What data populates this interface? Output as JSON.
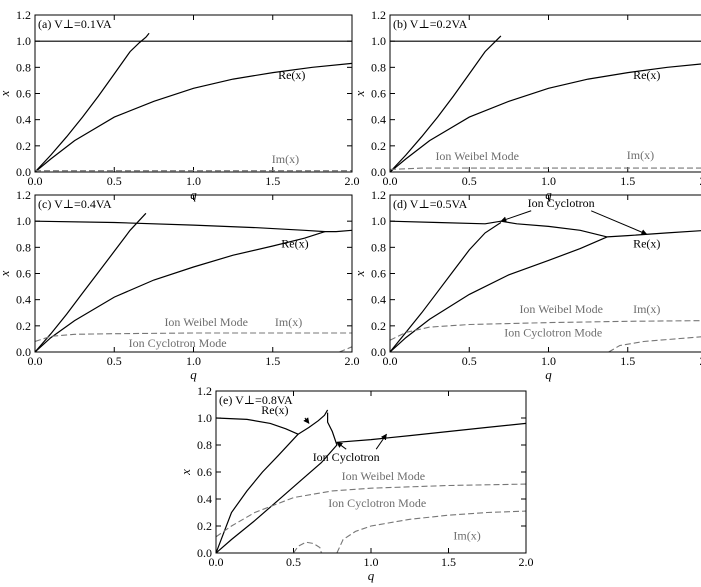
{
  "chart_data": [
    {
      "type": "line",
      "panel_label": "(a) V⊥=0.1VA",
      "xlabel": "q",
      "ylabel": "x",
      "xlim": [
        0,
        2.0
      ],
      "ylim": [
        0,
        1.2
      ],
      "xticks": [
        "0.0",
        "0.5",
        "1.0",
        "1.5",
        "2.0"
      ],
      "yticks": [
        "0.0",
        "0.2",
        "0.4",
        "0.6",
        "0.8",
        "1.0",
        "1.2"
      ],
      "series": [
        {
          "style": "solid",
          "color": "#000000",
          "points": [
            [
              0,
              1.0
            ],
            [
              2.0,
              1.0
            ]
          ]
        },
        {
          "style": "solid",
          "color": "#000000",
          "points": [
            [
              0,
              0
            ],
            [
              0.1,
              0.13
            ],
            [
              0.2,
              0.27
            ],
            [
              0.3,
              0.42
            ],
            [
              0.4,
              0.58
            ],
            [
              0.5,
              0.75
            ],
            [
              0.6,
              0.92
            ],
            [
              0.66,
              0.99
            ],
            [
              0.7,
              1.03
            ],
            [
              0.72,
              1.06
            ]
          ]
        },
        {
          "style": "solid",
          "color": "#000000",
          "points": [
            [
              0,
              0
            ],
            [
              0.1,
              0.1
            ],
            [
              0.25,
              0.24
            ],
            [
              0.5,
              0.42
            ],
            [
              0.75,
              0.54
            ],
            [
              1.0,
              0.64
            ],
            [
              1.25,
              0.71
            ],
            [
              1.5,
              0.76
            ],
            [
              1.75,
              0.8
            ],
            [
              2.0,
              0.83
            ]
          ]
        },
        {
          "style": "dashed",
          "color": "#777777",
          "points": [
            [
              0,
              0.01
            ],
            [
              2.0,
              0.01
            ]
          ]
        }
      ],
      "annotations": [
        {
          "text": "Re(x)",
          "x": 1.62,
          "y": 0.71,
          "color": "#000000"
        },
        {
          "text": "Im(x)",
          "x": 1.58,
          "y": 0.07,
          "color": "#6e6e6e"
        }
      ]
    },
    {
      "type": "line",
      "panel_label": "(b) V⊥=0.2VA",
      "xlabel": "q",
      "ylabel": "x",
      "xlim": [
        0,
        2.0
      ],
      "ylim": [
        0,
        1.2
      ],
      "xticks": [
        "0.0",
        "0.5",
        "1.0",
        "1.5",
        "2.0"
      ],
      "yticks": [
        "0.0",
        "0.2",
        "0.4",
        "0.6",
        "0.8",
        "1.0",
        "1.2"
      ],
      "series": [
        {
          "style": "solid",
          "color": "#000000",
          "points": [
            [
              0,
              1.0
            ],
            [
              2.0,
              1.0
            ]
          ]
        },
        {
          "style": "solid",
          "color": "#000000",
          "points": [
            [
              0,
              0
            ],
            [
              0.1,
              0.13
            ],
            [
              0.2,
              0.27
            ],
            [
              0.3,
              0.42
            ],
            [
              0.4,
              0.58
            ],
            [
              0.5,
              0.75
            ],
            [
              0.6,
              0.92
            ],
            [
              0.7,
              1.04
            ]
          ]
        },
        {
          "style": "solid",
          "color": "#000000",
          "points": [
            [
              0,
              0
            ],
            [
              0.1,
              0.1
            ],
            [
              0.25,
              0.24
            ],
            [
              0.5,
              0.42
            ],
            [
              0.75,
              0.54
            ],
            [
              1.0,
              0.64
            ],
            [
              1.25,
              0.71
            ],
            [
              1.5,
              0.76
            ],
            [
              1.75,
              0.8
            ],
            [
              2.0,
              0.83
            ]
          ]
        },
        {
          "style": "dashed",
          "color": "#777777",
          "points": [
            [
              0,
              0.02
            ],
            [
              0.2,
              0.03
            ],
            [
              2.0,
              0.03
            ]
          ]
        }
      ],
      "annotations": [
        {
          "text": "Re(x)",
          "x": 1.62,
          "y": 0.71,
          "color": "#000000"
        },
        {
          "text": "Ion Weibel Mode",
          "x": 0.55,
          "y": 0.09,
          "color": "#6e6e6e"
        },
        {
          "text": "Im(x)",
          "x": 1.58,
          "y": 0.1,
          "color": "#6e6e6e"
        }
      ]
    },
    {
      "type": "line",
      "panel_label": "(c) V⊥=0.4VA",
      "xlabel": "q",
      "ylabel": "x",
      "xlim": [
        0,
        2.0
      ],
      "ylim": [
        0,
        1.2
      ],
      "xticks": [
        "0.0",
        "0.5",
        "1.0",
        "1.5",
        "2.0"
      ],
      "yticks": [
        "0.0",
        "0.2",
        "0.4",
        "0.6",
        "0.8",
        "1.0",
        "1.2"
      ],
      "series": [
        {
          "style": "solid",
          "color": "#000000",
          "points": [
            [
              0,
              1.0
            ],
            [
              0.5,
              0.99
            ],
            [
              1.0,
              0.97
            ],
            [
              1.4,
              0.95
            ],
            [
              1.7,
              0.93
            ],
            [
              1.83,
              0.92
            ],
            [
              1.9,
              0.92
            ],
            [
              2.0,
              0.93
            ]
          ]
        },
        {
          "style": "solid",
          "color": "#000000",
          "points": [
            [
              0,
              0
            ],
            [
              0.1,
              0.14
            ],
            [
              0.2,
              0.29
            ],
            [
              0.3,
              0.45
            ],
            [
              0.4,
              0.61
            ],
            [
              0.5,
              0.77
            ],
            [
              0.6,
              0.93
            ],
            [
              0.7,
              1.06
            ]
          ]
        },
        {
          "style": "solid",
          "color": "#000000",
          "points": [
            [
              0,
              0
            ],
            [
              0.1,
              0.11
            ],
            [
              0.25,
              0.24
            ],
            [
              0.5,
              0.42
            ],
            [
              0.75,
              0.55
            ],
            [
              1.0,
              0.65
            ],
            [
              1.25,
              0.74
            ],
            [
              1.5,
              0.81
            ],
            [
              1.7,
              0.87
            ],
            [
              1.83,
              0.92
            ]
          ]
        },
        {
          "style": "dashed",
          "color": "#777777",
          "points": [
            [
              0,
              0.08
            ],
            [
              0.1,
              0.12
            ],
            [
              0.25,
              0.135
            ],
            [
              0.5,
              0.14
            ],
            [
              1.0,
              0.145
            ],
            [
              1.5,
              0.145
            ],
            [
              2.0,
              0.145
            ]
          ]
        },
        {
          "style": "dashed",
          "color": "#777777",
          "points": [
            [
              1.92,
              0.0
            ],
            [
              1.96,
              0.02
            ],
            [
              2.0,
              0.04
            ]
          ]
        }
      ],
      "annotations": [
        {
          "text": "Re(x)",
          "x": 1.64,
          "y": 0.8,
          "color": "#000000"
        },
        {
          "text": "Ion Weibel Mode",
          "x": 1.08,
          "y": 0.2,
          "color": "#6e6e6e"
        },
        {
          "text": "Im(x)",
          "x": 1.6,
          "y": 0.2,
          "color": "#6e6e6e"
        },
        {
          "text": "Ion Cyclotron Mode",
          "x": 0.9,
          "y": 0.04,
          "color": "#6e6e6e"
        }
      ]
    },
    {
      "type": "line",
      "panel_label": "(d) V⊥=0.5VA",
      "xlabel": "q",
      "ylabel": "x",
      "xlim": [
        0,
        2.0
      ],
      "ylim": [
        0,
        1.2
      ],
      "xticks": [
        "0.0",
        "0.5",
        "1.0",
        "1.5",
        "2.0"
      ],
      "yticks": [
        "0.0",
        "0.2",
        "0.4",
        "0.6",
        "0.8",
        "1.0",
        "1.2"
      ],
      "series": [
        {
          "style": "solid",
          "color": "#000000",
          "points": [
            [
              0,
              1.0
            ],
            [
              0.3,
              0.99
            ],
            [
              0.6,
              0.98
            ],
            [
              0.7,
              1.0
            ],
            [
              0.8,
              0.98
            ],
            [
              1.0,
              0.96
            ],
            [
              1.2,
              0.93
            ],
            [
              1.37,
              0.88
            ],
            [
              1.5,
              0.89
            ],
            [
              1.75,
              0.91
            ],
            [
              2.0,
              0.93
            ]
          ]
        },
        {
          "style": "solid",
          "color": "#000000",
          "points": [
            [
              0,
              0
            ],
            [
              0.1,
              0.15
            ],
            [
              0.2,
              0.3
            ],
            [
              0.3,
              0.46
            ],
            [
              0.4,
              0.62
            ],
            [
              0.5,
              0.78
            ],
            [
              0.6,
              0.91
            ],
            [
              0.7,
              0.99
            ]
          ]
        },
        {
          "style": "solid",
          "color": "#000000",
          "points": [
            [
              0,
              0
            ],
            [
              0.1,
              0.11
            ],
            [
              0.25,
              0.25
            ],
            [
              0.5,
              0.44
            ],
            [
              0.75,
              0.59
            ],
            [
              1.0,
              0.7
            ],
            [
              1.2,
              0.79
            ],
            [
              1.37,
              0.88
            ]
          ]
        },
        {
          "style": "dashed",
          "color": "#777777",
          "points": [
            [
              0,
              0.09
            ],
            [
              0.1,
              0.15
            ],
            [
              0.25,
              0.19
            ],
            [
              0.5,
              0.21
            ],
            [
              1.0,
              0.225
            ],
            [
              1.5,
              0.235
            ],
            [
              2.0,
              0.24
            ]
          ]
        },
        {
          "style": "dashed",
          "color": "#777777",
          "points": [
            [
              1.38,
              0.0
            ],
            [
              1.45,
              0.05
            ],
            [
              1.6,
              0.08
            ],
            [
              1.8,
              0.1
            ],
            [
              2.0,
              0.12
            ]
          ]
        }
      ],
      "annotations": [
        {
          "text": "Ion Cyclotron",
          "x": 1.08,
          "y": 1.11,
          "color": "#000000"
        },
        {
          "text": "Re(x)",
          "x": 1.62,
          "y": 0.8,
          "color": "#000000"
        },
        {
          "text": "Ion Weibel Mode",
          "x": 1.08,
          "y": 0.3,
          "color": "#6e6e6e"
        },
        {
          "text": "Im(x)",
          "x": 1.62,
          "y": 0.3,
          "color": "#6e6e6e"
        },
        {
          "text": "Ion Cyclotron Mode",
          "x": 1.03,
          "y": 0.12,
          "color": "#6e6e6e"
        }
      ]
    },
    {
      "type": "line",
      "panel_label": "(e) V⊥=0.8VA",
      "xlabel": "q",
      "ylabel": "x",
      "xlim": [
        0,
        2.0
      ],
      "ylim": [
        0,
        1.2
      ],
      "xticks": [
        "0.0",
        "0.5",
        "1.0",
        "1.5",
        "2.0"
      ],
      "yticks": [
        "0.0",
        "0.2",
        "0.4",
        "0.6",
        "0.8",
        "1.0",
        "1.2"
      ],
      "series": [
        {
          "style": "solid",
          "color": "#000000",
          "points": [
            [
              0,
              1.0
            ],
            [
              0.2,
              0.99
            ],
            [
              0.35,
              0.96
            ],
            [
              0.45,
              0.92
            ],
            [
              0.53,
              0.88
            ],
            [
              0.6,
              0.93
            ],
            [
              0.66,
              0.98
            ],
            [
              0.7,
              1.02
            ],
            [
              0.72,
              1.06
            ]
          ]
        },
        {
          "style": "solid",
          "color": "#000000",
          "points": [
            [
              0,
              0
            ],
            [
              0.1,
              0.3
            ],
            [
              0.2,
              0.46
            ],
            [
              0.3,
              0.6
            ],
            [
              0.4,
              0.72
            ],
            [
              0.53,
              0.88
            ]
          ]
        },
        {
          "style": "solid",
          "color": "#000000",
          "points": [
            [
              0,
              0
            ],
            [
              0.1,
              0.1
            ],
            [
              0.25,
              0.24
            ],
            [
              0.4,
              0.39
            ],
            [
              0.55,
              0.54
            ],
            [
              0.68,
              0.67
            ],
            [
              0.78,
              0.8
            ],
            [
              0.75,
              0.9
            ],
            [
              0.72,
              0.97
            ],
            [
              0.72,
              1.04
            ]
          ]
        },
        {
          "style": "solid",
          "color": "#000000",
          "points": [
            [
              0.78,
              0.82
            ],
            [
              1.0,
              0.84
            ],
            [
              1.25,
              0.87
            ],
            [
              1.5,
              0.9
            ],
            [
              1.75,
              0.93
            ],
            [
              2.0,
              0.96
            ]
          ]
        },
        {
          "style": "dashed",
          "color": "#777777",
          "points": [
            [
              0,
              0.12
            ],
            [
              0.1,
              0.2
            ],
            [
              0.25,
              0.3
            ],
            [
              0.5,
              0.41
            ],
            [
              0.75,
              0.46
            ],
            [
              1.0,
              0.48
            ],
            [
              1.5,
              0.5
            ],
            [
              2.0,
              0.51
            ]
          ]
        },
        {
          "style": "dashed",
          "color": "#777777",
          "points": [
            [
              0.5,
              0.0
            ],
            [
              0.53,
              0.05
            ],
            [
              0.58,
              0.08
            ],
            [
              0.63,
              0.07
            ],
            [
              0.67,
              0.04
            ],
            [
              0.68,
              0.0
            ]
          ]
        },
        {
          "style": "dashed",
          "color": "#777777",
          "points": [
            [
              0.78,
              0.0
            ],
            [
              0.82,
              0.1
            ],
            [
              0.9,
              0.16
            ],
            [
              1.0,
              0.2
            ],
            [
              1.25,
              0.25
            ],
            [
              1.5,
              0.28
            ],
            [
              1.75,
              0.3
            ],
            [
              2.0,
              0.31
            ]
          ]
        }
      ],
      "annotations": [
        {
          "text": "Re(x)",
          "x": 0.38,
          "y": 1.03,
          "color": "#000000"
        },
        {
          "text": "Ion Cyclotron",
          "x": 0.84,
          "y": 0.68,
          "color": "#000000"
        },
        {
          "text": "Ion Weibel Mode",
          "x": 1.08,
          "y": 0.54,
          "color": "#6e6e6e"
        },
        {
          "text": "Ion Cyclotron Mode",
          "x": 1.04,
          "y": 0.34,
          "color": "#6e6e6e"
        },
        {
          "text": "Im(x)",
          "x": 1.62,
          "y": 0.1,
          "color": "#6e6e6e"
        }
      ]
    }
  ]
}
